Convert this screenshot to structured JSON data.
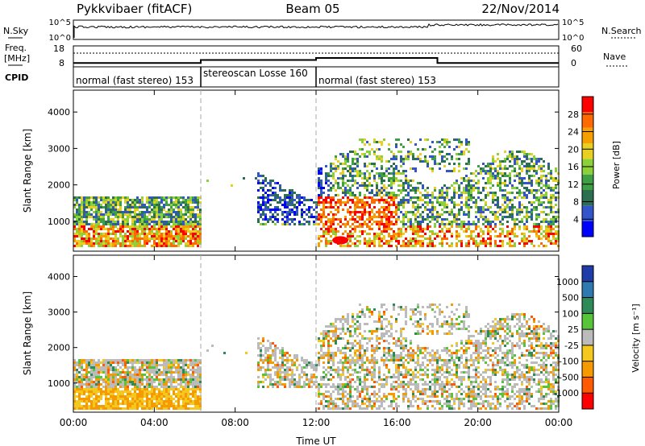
{
  "header": {
    "station": "Pykkvibaer (fitACF)",
    "beam": "Beam 05",
    "date": "22/Nov/2014"
  },
  "top_panels": {
    "nsky_label": "N.Sky",
    "nsky_ticks": [
      "10^5",
      "10^0"
    ],
    "nsearch_label": "N.Search",
    "nsearch_ticks": [
      "10^5",
      "10^0"
    ],
    "freq_label": "Freq.",
    "freq_unit": "[MHz]",
    "freq_ticks": [
      "18",
      "8"
    ],
    "nave_label": "Nave",
    "nave_ticks": [
      "60",
      "0"
    ],
    "cpid_label": "CPID",
    "modes": [
      {
        "label": "normal (fast stereo) 153",
        "start": 0,
        "end": 6.3
      },
      {
        "label": "stereoscan Losse 160",
        "start": 6.3,
        "end": 12.0
      },
      {
        "label": "normal (fast stereo) 153",
        "start": 12.0,
        "end": 24.0
      }
    ],
    "freq_steps": [
      {
        "t": 0,
        "f": 9.5
      },
      {
        "t": 6.3,
        "f": 11.0
      },
      {
        "t": 12.0,
        "f": 12.0
      },
      {
        "t": 18.0,
        "f": 9.5
      },
      {
        "t": 24.0,
        "f": 9.5
      }
    ]
  },
  "chart_data": [
    {
      "type": "heatmap",
      "name": "power",
      "xlabel": "",
      "ylabel": "Slant Range [km]",
      "xlim": [
        0,
        24
      ],
      "ylim": [
        180,
        4600
      ],
      "yticks": [
        "1000",
        "2000",
        "3000",
        "4000"
      ],
      "xticks": [
        "00:00",
        "04:00",
        "08:00",
        "12:00",
        "16:00",
        "20:00",
        "00:00"
      ],
      "colorbar": {
        "label": "Power [dB]",
        "ticks": [
          "4",
          "8",
          "12",
          "16",
          "20",
          "24",
          "28"
        ],
        "colors": [
          "#0000ff",
          "#3355cc",
          "#2b6e50",
          "#3f9f44",
          "#8dd13a",
          "#e8d020",
          "#f5a000",
          "#ff6a00",
          "#ff0000"
        ]
      }
    },
    {
      "type": "heatmap",
      "name": "velocity",
      "xlabel": "Time UT",
      "ylabel": "Slant Range [km]",
      "xlim": [
        0,
        24
      ],
      "ylim": [
        180,
        4600
      ],
      "yticks": [
        "1000",
        "2000",
        "3000",
        "4000"
      ],
      "xticks": [
        "00:00",
        "04:00",
        "08:00",
        "12:00",
        "16:00",
        "20:00",
        "00:00"
      ],
      "colorbar": {
        "label": "Velocity [m s⁻¹]",
        "ticks": [
          "1000",
          "500",
          "100",
          "25",
          "-25",
          "-100",
          "-500",
          "-1000"
        ],
        "colors": [
          "#1f3ca8",
          "#2e7ab0",
          "#2e8b57",
          "#57c43a",
          "#bbbbbb",
          "#f5c820",
          "#f59a00",
          "#ff5a00",
          "#ff0000"
        ]
      }
    }
  ],
  "colors": {
    "frame": "#000000",
    "separator": "#aaaaaa"
  }
}
